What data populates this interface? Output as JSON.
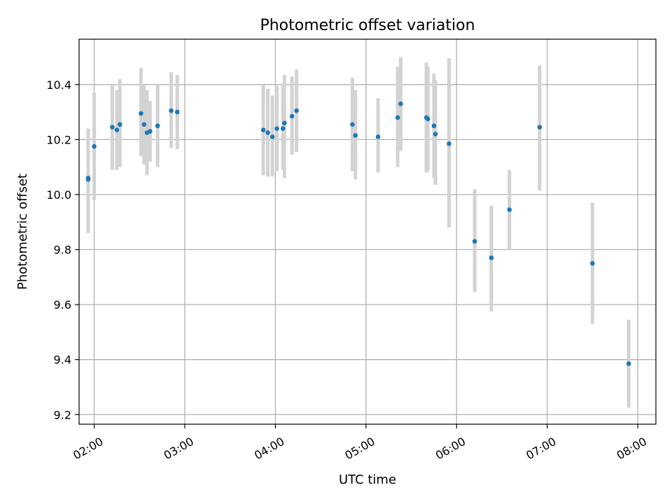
{
  "chart_data": {
    "type": "scatter",
    "title": "Photometric offset variation",
    "xlabel": "UTC time",
    "ylabel": "Photometric offset",
    "x_axis_kind": "time",
    "xlim": [
      "01:50",
      "08:12"
    ],
    "ylim": [
      9.165,
      10.565
    ],
    "x_ticks": [
      "02:00",
      "03:00",
      "04:00",
      "05:00",
      "06:00",
      "07:00",
      "08:00"
    ],
    "y_ticks": [
      9.2,
      9.4,
      9.6,
      9.8,
      10.0,
      10.2,
      10.4
    ],
    "y_tick_labels": [
      "9.2",
      "9.4",
      "9.6",
      "9.8",
      "10.0",
      "10.2",
      "10.4"
    ],
    "grid": true,
    "colors": {
      "point": "#1f77b4",
      "errorbar": "#d3d3d3"
    },
    "points": [
      {
        "x": "01:56",
        "y": 10.055,
        "ylow": 9.86,
        "yhigh": 10.24
      },
      {
        "x": "01:56",
        "y": 10.06,
        "ylow": 9.87,
        "yhigh": 10.24
      },
      {
        "x": "02:00",
        "y": 10.175,
        "ylow": 9.98,
        "yhigh": 10.37
      },
      {
        "x": "02:12",
        "y": 10.245,
        "ylow": 10.09,
        "yhigh": 10.4
      },
      {
        "x": "02:15",
        "y": 10.235,
        "ylow": 10.09,
        "yhigh": 10.38
      },
      {
        "x": "02:17",
        "y": 10.255,
        "ylow": 10.1,
        "yhigh": 10.42
      },
      {
        "x": "02:31",
        "y": 10.295,
        "ylow": 10.14,
        "yhigh": 10.46
      },
      {
        "x": "02:33",
        "y": 10.255,
        "ylow": 10.11,
        "yhigh": 10.4
      },
      {
        "x": "02:35",
        "y": 10.225,
        "ylow": 10.07,
        "yhigh": 10.38
      },
      {
        "x": "02:37",
        "y": 10.23,
        "ylow": 10.12,
        "yhigh": 10.34
      },
      {
        "x": "02:42",
        "y": 10.25,
        "ylow": 10.1,
        "yhigh": 10.4
      },
      {
        "x": "02:51",
        "y": 10.305,
        "ylow": 10.17,
        "yhigh": 10.445
      },
      {
        "x": "02:55",
        "y": 10.3,
        "ylow": 10.165,
        "yhigh": 10.435
      },
      {
        "x": "03:52",
        "y": 10.235,
        "ylow": 10.07,
        "yhigh": 10.4
      },
      {
        "x": "03:55",
        "y": 10.225,
        "ylow": 10.065,
        "yhigh": 10.385
      },
      {
        "x": "03:58",
        "y": 10.21,
        "ylow": 10.065,
        "yhigh": 10.36
      },
      {
        "x": "04:01",
        "y": 10.24,
        "ylow": 10.085,
        "yhigh": 10.395
      },
      {
        "x": "04:05",
        "y": 10.24,
        "ylow": 10.09,
        "yhigh": 10.395
      },
      {
        "x": "04:06",
        "y": 10.26,
        "ylow": 10.06,
        "yhigh": 10.435
      },
      {
        "x": "04:11",
        "y": 10.285,
        "ylow": 10.145,
        "yhigh": 10.43
      },
      {
        "x": "04:14",
        "y": 10.305,
        "ylow": 10.155,
        "yhigh": 10.455
      },
      {
        "x": "04:51",
        "y": 10.255,
        "ylow": 10.085,
        "yhigh": 10.425
      },
      {
        "x": "04:53",
        "y": 10.215,
        "ylow": 10.055,
        "yhigh": 10.38
      },
      {
        "x": "05:08",
        "y": 10.21,
        "ylow": 10.08,
        "yhigh": 10.35
      },
      {
        "x": "05:21",
        "y": 10.28,
        "ylow": 10.1,
        "yhigh": 10.465
      },
      {
        "x": "05:23",
        "y": 10.33,
        "ylow": 10.16,
        "yhigh": 10.5
      },
      {
        "x": "05:40",
        "y": 10.28,
        "ylow": 10.08,
        "yhigh": 10.48
      },
      {
        "x": "05:41",
        "y": 10.275,
        "ylow": 10.085,
        "yhigh": 10.465
      },
      {
        "x": "05:45",
        "y": 10.25,
        "ylow": 10.06,
        "yhigh": 10.44
      },
      {
        "x": "05:46",
        "y": 10.22,
        "ylow": 10.035,
        "yhigh": 10.415
      },
      {
        "x": "05:55",
        "y": 10.185,
        "ylow": 9.88,
        "yhigh": 10.495
      },
      {
        "x": "06:12",
        "y": 9.83,
        "ylow": 9.645,
        "yhigh": 10.02
      },
      {
        "x": "06:23",
        "y": 9.77,
        "ylow": 9.575,
        "yhigh": 9.96
      },
      {
        "x": "06:35",
        "y": 9.945,
        "ylow": 9.8,
        "yhigh": 10.09
      },
      {
        "x": "06:55",
        "y": 10.245,
        "ylow": 10.015,
        "yhigh": 10.47
      },
      {
        "x": "07:30",
        "y": 9.75,
        "ylow": 9.53,
        "yhigh": 9.97
      },
      {
        "x": "07:54",
        "y": 9.385,
        "ylow": 9.225,
        "yhigh": 9.545
      }
    ]
  }
}
